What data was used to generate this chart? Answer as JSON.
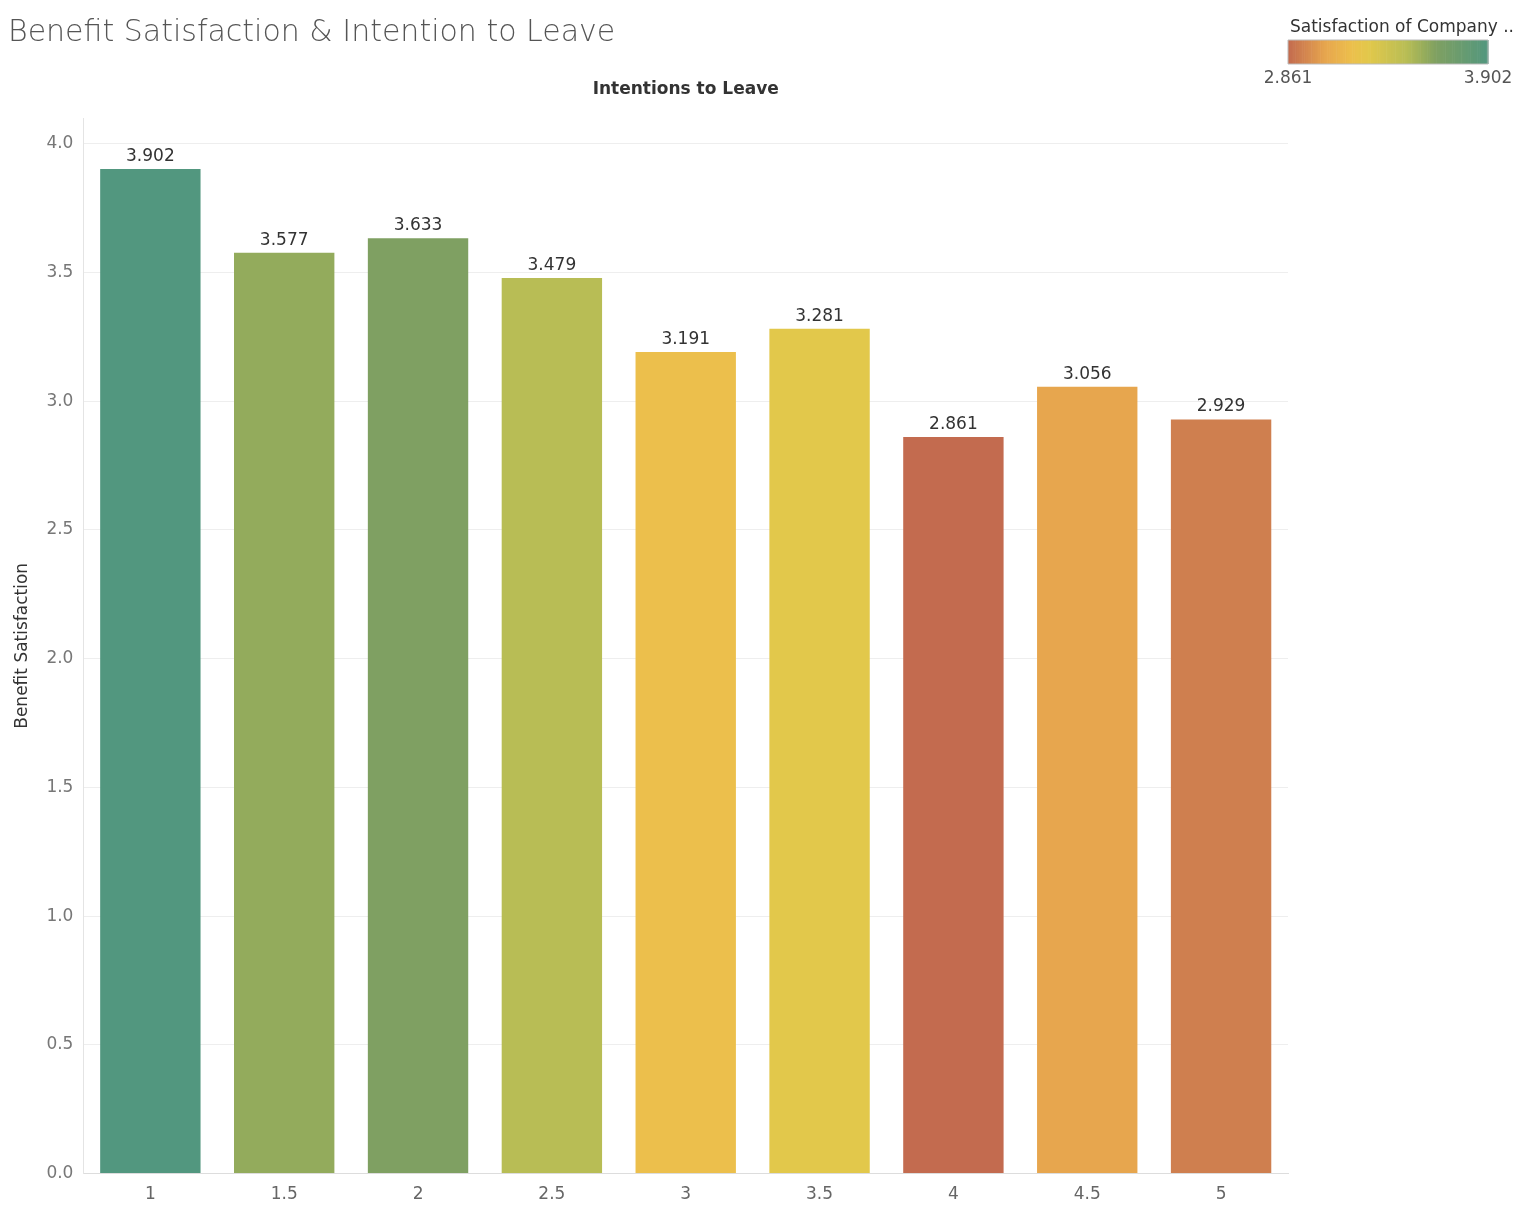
{
  "chart_data": {
    "type": "bar",
    "title": "Benefit Satisfaction & Intention to Leave",
    "xlabel": "Intentions to Leave",
    "ylabel": "Benefit Satisfaction",
    "clabel": "Satisfaction of Company ..",
    "categories": [
      "1",
      "1.5",
      "2",
      "2.5",
      "3",
      "3.5",
      "4",
      "4.5",
      "5"
    ],
    "values": [
      3.902,
      3.577,
      3.633,
      3.479,
      3.191,
      3.281,
      2.861,
      3.056,
      2.929
    ],
    "colors": [
      "#52977f",
      "#93ab5c",
      "#7fa062",
      "#b8bd55",
      "#ecbf4c",
      "#e2c84b",
      "#c36b4f",
      "#e7a64e",
      "#cf7f4f"
    ],
    "data_labels": true,
    "ylim": [
      0,
      4.1
    ],
    "yticks": [
      {
        "value": 0,
        "label": "0.0"
      },
      {
        "value": 0.5,
        "label": "0.5"
      },
      {
        "value": 1,
        "label": "1.0"
      },
      {
        "value": 1.5,
        "label": "1.5"
      },
      {
        "value": 2,
        "label": "2.0"
      },
      {
        "value": 2.5,
        "label": "2.5"
      },
      {
        "value": 3,
        "label": "3.0"
      },
      {
        "value": 3.5,
        "label": "3.5"
      },
      {
        "value": 4,
        "label": "4.0"
      }
    ],
    "clim": [
      2.861,
      3.902
    ],
    "cticks": [
      2.861,
      3.902
    ],
    "grid": "y",
    "legend": false
  }
}
